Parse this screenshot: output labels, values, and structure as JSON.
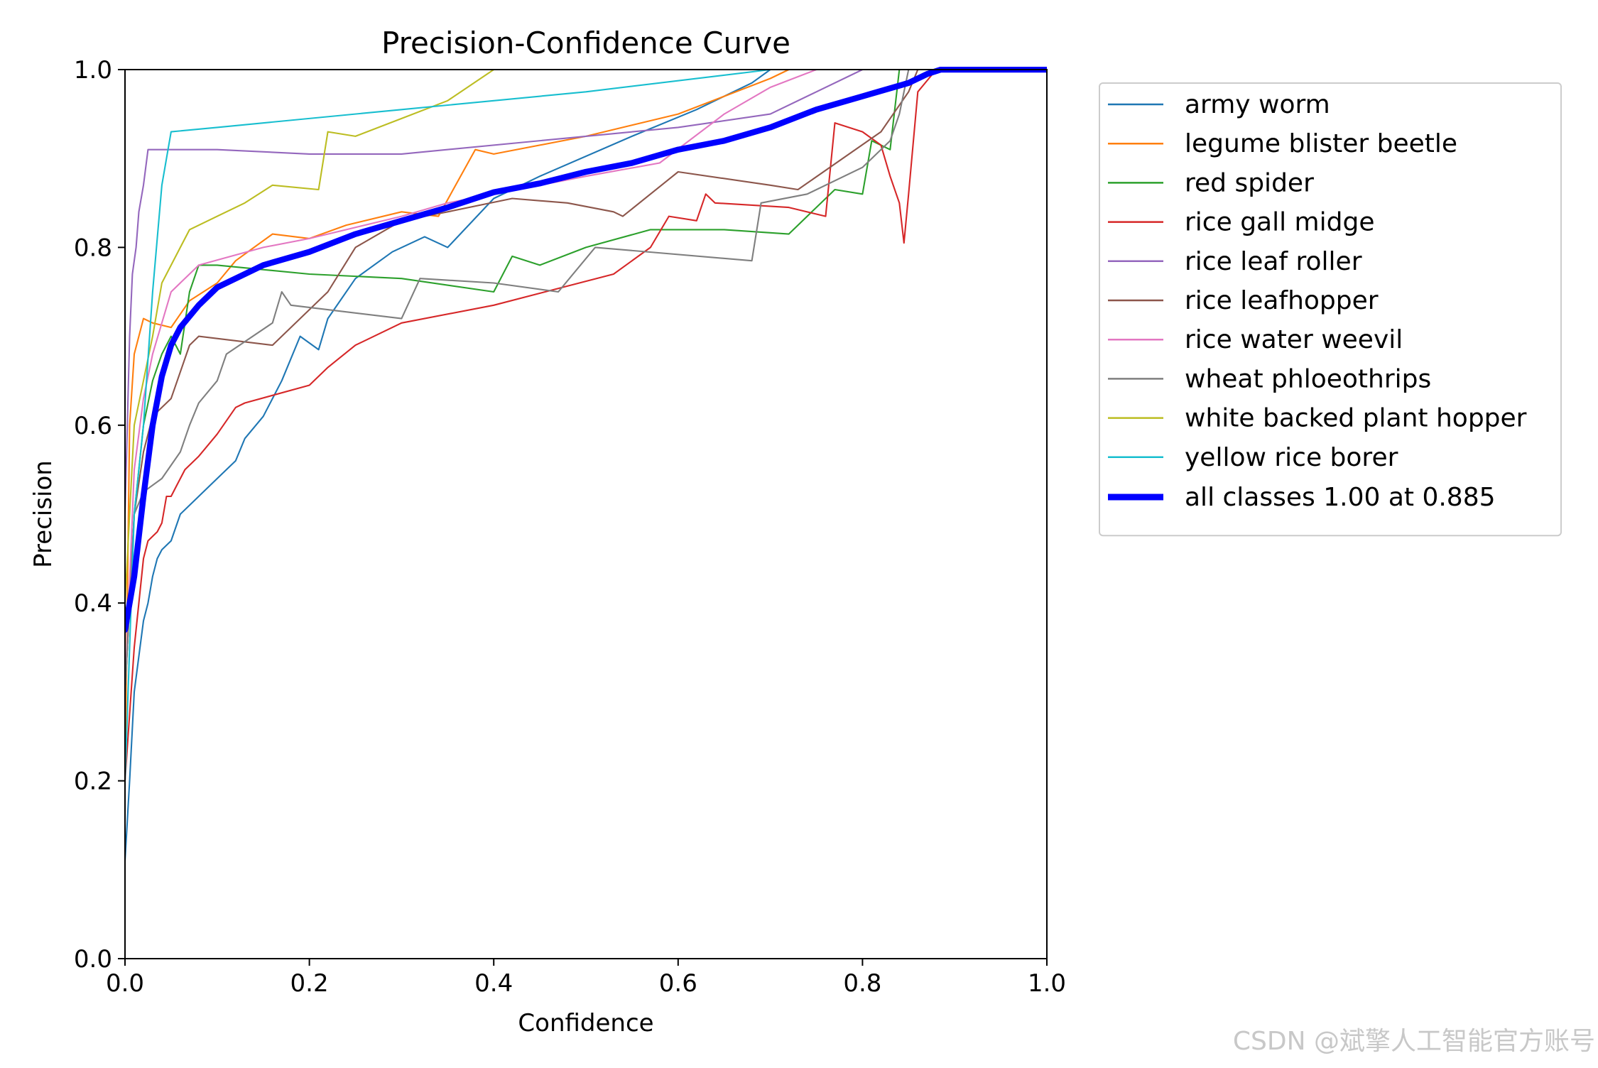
{
  "chart_data": {
    "type": "line",
    "title": "Precision-Confidence Curve",
    "xlabel": "Confidence",
    "ylabel": "Precision",
    "xlim": [
      0.0,
      1.0
    ],
    "ylim": [
      0.0,
      1.0
    ],
    "xticks": [
      "0.0",
      "0.2",
      "0.4",
      "0.6",
      "0.8",
      "1.0"
    ],
    "yticks": [
      "0.0",
      "0.2",
      "0.4",
      "0.6",
      "0.8",
      "1.0"
    ],
    "grid": false,
    "legend_position": "outside-right",
    "series": [
      {
        "name": "army worm",
        "color": "#1f77b4",
        "width": 1.5,
        "points": [
          [
            0.0,
            0.11
          ],
          [
            0.005,
            0.2
          ],
          [
            0.01,
            0.3
          ],
          [
            0.015,
            0.34
          ],
          [
            0.02,
            0.38
          ],
          [
            0.025,
            0.4
          ],
          [
            0.03,
            0.43
          ],
          [
            0.035,
            0.45
          ],
          [
            0.04,
            0.46
          ],
          [
            0.05,
            0.47
          ],
          [
            0.06,
            0.5
          ],
          [
            0.07,
            0.51
          ],
          [
            0.08,
            0.52
          ],
          [
            0.1,
            0.54
          ],
          [
            0.12,
            0.56
          ],
          [
            0.13,
            0.585
          ],
          [
            0.15,
            0.61
          ],
          [
            0.17,
            0.65
          ],
          [
            0.19,
            0.7
          ],
          [
            0.21,
            0.685
          ],
          [
            0.22,
            0.72
          ],
          [
            0.25,
            0.765
          ],
          [
            0.29,
            0.795
          ],
          [
            0.325,
            0.812
          ],
          [
            0.35,
            0.8
          ],
          [
            0.4,
            0.855
          ],
          [
            0.45,
            0.88
          ],
          [
            0.55,
            0.925
          ],
          [
            0.62,
            0.955
          ],
          [
            0.68,
            0.985
          ],
          [
            0.7,
            1.0
          ],
          [
            1.0,
            1.0
          ]
        ]
      },
      {
        "name": "legume blister beetle",
        "color": "#ff7f0e",
        "width": 1.5,
        "points": [
          [
            0.0,
            0.2
          ],
          [
            0.005,
            0.6
          ],
          [
            0.01,
            0.68
          ],
          [
            0.015,
            0.7
          ],
          [
            0.02,
            0.72
          ],
          [
            0.03,
            0.715
          ],
          [
            0.05,
            0.71
          ],
          [
            0.07,
            0.74
          ],
          [
            0.1,
            0.76
          ],
          [
            0.12,
            0.785
          ],
          [
            0.14,
            0.8
          ],
          [
            0.16,
            0.815
          ],
          [
            0.2,
            0.81
          ],
          [
            0.24,
            0.825
          ],
          [
            0.3,
            0.84
          ],
          [
            0.34,
            0.835
          ],
          [
            0.38,
            0.91
          ],
          [
            0.4,
            0.905
          ],
          [
            0.5,
            0.925
          ],
          [
            0.6,
            0.95
          ],
          [
            0.65,
            0.97
          ],
          [
            0.7,
            0.99
          ],
          [
            0.72,
            1.0
          ],
          [
            1.0,
            1.0
          ]
        ]
      },
      {
        "name": "red spider",
        "color": "#2ca02c",
        "width": 1.5,
        "points": [
          [
            0.0,
            0.3
          ],
          [
            0.01,
            0.5
          ],
          [
            0.02,
            0.6
          ],
          [
            0.03,
            0.65
          ],
          [
            0.04,
            0.68
          ],
          [
            0.05,
            0.7
          ],
          [
            0.06,
            0.68
          ],
          [
            0.07,
            0.75
          ],
          [
            0.08,
            0.78
          ],
          [
            0.1,
            0.78
          ],
          [
            0.2,
            0.77
          ],
          [
            0.3,
            0.765
          ],
          [
            0.4,
            0.75
          ],
          [
            0.42,
            0.79
          ],
          [
            0.45,
            0.78
          ],
          [
            0.5,
            0.8
          ],
          [
            0.57,
            0.82
          ],
          [
            0.65,
            0.82
          ],
          [
            0.72,
            0.815
          ],
          [
            0.77,
            0.865
          ],
          [
            0.8,
            0.86
          ],
          [
            0.81,
            0.92
          ],
          [
            0.83,
            0.91
          ],
          [
            0.84,
            1.0
          ],
          [
            1.0,
            1.0
          ]
        ]
      },
      {
        "name": "rice gall midge",
        "color": "#d62728",
        "width": 1.5,
        "points": [
          [
            0.0,
            0.2
          ],
          [
            0.01,
            0.35
          ],
          [
            0.02,
            0.45
          ],
          [
            0.025,
            0.47
          ],
          [
            0.03,
            0.475
          ],
          [
            0.035,
            0.48
          ],
          [
            0.04,
            0.49
          ],
          [
            0.045,
            0.52
          ],
          [
            0.05,
            0.52
          ],
          [
            0.055,
            0.53
          ],
          [
            0.065,
            0.55
          ],
          [
            0.08,
            0.565
          ],
          [
            0.1,
            0.59
          ],
          [
            0.12,
            0.62
          ],
          [
            0.13,
            0.625
          ],
          [
            0.2,
            0.645
          ],
          [
            0.22,
            0.665
          ],
          [
            0.25,
            0.69
          ],
          [
            0.3,
            0.715
          ],
          [
            0.4,
            0.735
          ],
          [
            0.53,
            0.77
          ],
          [
            0.57,
            0.8
          ],
          [
            0.59,
            0.835
          ],
          [
            0.62,
            0.83
          ],
          [
            0.63,
            0.86
          ],
          [
            0.64,
            0.85
          ],
          [
            0.72,
            0.845
          ],
          [
            0.76,
            0.835
          ],
          [
            0.77,
            0.94
          ],
          [
            0.8,
            0.93
          ],
          [
            0.82,
            0.915
          ],
          [
            0.83,
            0.88
          ],
          [
            0.84,
            0.85
          ],
          [
            0.845,
            0.805
          ],
          [
            0.85,
            0.86
          ],
          [
            0.86,
            0.975
          ],
          [
            0.88,
            1.0
          ],
          [
            1.0,
            1.0
          ]
        ]
      },
      {
        "name": "rice leaf roller",
        "color": "#9467bd",
        "width": 1.5,
        "points": [
          [
            0.0,
            0.5
          ],
          [
            0.005,
            0.7
          ],
          [
            0.008,
            0.77
          ],
          [
            0.012,
            0.8
          ],
          [
            0.015,
            0.84
          ],
          [
            0.02,
            0.87
          ],
          [
            0.025,
            0.91
          ],
          [
            0.1,
            0.91
          ],
          [
            0.2,
            0.905
          ],
          [
            0.3,
            0.905
          ],
          [
            0.5,
            0.925
          ],
          [
            0.6,
            0.935
          ],
          [
            0.7,
            0.95
          ],
          [
            0.75,
            0.975
          ],
          [
            0.8,
            1.0
          ],
          [
            1.0,
            1.0
          ]
        ]
      },
      {
        "name": "rice leafhopper",
        "color": "#8c564b",
        "width": 1.5,
        "points": [
          [
            0.0,
            0.3
          ],
          [
            0.01,
            0.5
          ],
          [
            0.02,
            0.57
          ],
          [
            0.03,
            0.61
          ],
          [
            0.05,
            0.63
          ],
          [
            0.06,
            0.66
          ],
          [
            0.07,
            0.69
          ],
          [
            0.08,
            0.7
          ],
          [
            0.16,
            0.69
          ],
          [
            0.22,
            0.75
          ],
          [
            0.25,
            0.8
          ],
          [
            0.3,
            0.83
          ],
          [
            0.35,
            0.84
          ],
          [
            0.42,
            0.855
          ],
          [
            0.48,
            0.85
          ],
          [
            0.53,
            0.84
          ],
          [
            0.54,
            0.835
          ],
          [
            0.6,
            0.885
          ],
          [
            0.7,
            0.87
          ],
          [
            0.73,
            0.865
          ],
          [
            0.82,
            0.93
          ],
          [
            0.85,
            0.975
          ],
          [
            0.86,
            1.0
          ],
          [
            1.0,
            1.0
          ]
        ]
      },
      {
        "name": "rice water weevil",
        "color": "#e377c2",
        "width": 1.5,
        "points": [
          [
            0.0,
            0.3
          ],
          [
            0.01,
            0.55
          ],
          [
            0.02,
            0.63
          ],
          [
            0.03,
            0.68
          ],
          [
            0.05,
            0.75
          ],
          [
            0.08,
            0.78
          ],
          [
            0.15,
            0.8
          ],
          [
            0.2,
            0.81
          ],
          [
            0.3,
            0.835
          ],
          [
            0.35,
            0.85
          ],
          [
            0.4,
            0.86
          ],
          [
            0.5,
            0.88
          ],
          [
            0.58,
            0.895
          ],
          [
            0.65,
            0.95
          ],
          [
            0.7,
            0.98
          ],
          [
            0.75,
            1.0
          ],
          [
            1.0,
            1.0
          ]
        ]
      },
      {
        "name": "wheat phloeothrips",
        "color": "#7f7f7f",
        "width": 1.5,
        "points": [
          [
            0.0,
            0.3
          ],
          [
            0.01,
            0.5
          ],
          [
            0.02,
            0.525
          ],
          [
            0.04,
            0.54
          ],
          [
            0.06,
            0.57
          ],
          [
            0.07,
            0.6
          ],
          [
            0.08,
            0.625
          ],
          [
            0.1,
            0.65
          ],
          [
            0.11,
            0.68
          ],
          [
            0.16,
            0.715
          ],
          [
            0.17,
            0.75
          ],
          [
            0.18,
            0.735
          ],
          [
            0.3,
            0.72
          ],
          [
            0.32,
            0.765
          ],
          [
            0.4,
            0.76
          ],
          [
            0.47,
            0.75
          ],
          [
            0.51,
            0.8
          ],
          [
            0.68,
            0.785
          ],
          [
            0.69,
            0.85
          ],
          [
            0.74,
            0.86
          ],
          [
            0.8,
            0.89
          ],
          [
            0.83,
            0.92
          ],
          [
            0.84,
            0.95
          ],
          [
            0.85,
            1.0
          ],
          [
            1.0,
            1.0
          ]
        ]
      },
      {
        "name": "white backed plant hopper",
        "color": "#bcbd22",
        "width": 1.5,
        "points": [
          [
            0.0,
            0.4
          ],
          [
            0.01,
            0.6
          ],
          [
            0.02,
            0.65
          ],
          [
            0.03,
            0.7
          ],
          [
            0.04,
            0.76
          ],
          [
            0.06,
            0.8
          ],
          [
            0.07,
            0.82
          ],
          [
            0.1,
            0.835
          ],
          [
            0.13,
            0.85
          ],
          [
            0.16,
            0.87
          ],
          [
            0.21,
            0.865
          ],
          [
            0.22,
            0.93
          ],
          [
            0.25,
            0.925
          ],
          [
            0.3,
            0.945
          ],
          [
            0.35,
            0.965
          ],
          [
            0.4,
            1.0
          ],
          [
            1.0,
            1.0
          ]
        ]
      },
      {
        "name": "yellow rice borer",
        "color": "#17becf",
        "width": 1.5,
        "points": [
          [
            0.0,
            0.2
          ],
          [
            0.01,
            0.5
          ],
          [
            0.02,
            0.6
          ],
          [
            0.03,
            0.75
          ],
          [
            0.04,
            0.87
          ],
          [
            0.05,
            0.93
          ],
          [
            0.1,
            0.935
          ],
          [
            0.3,
            0.955
          ],
          [
            0.5,
            0.975
          ],
          [
            0.7,
            1.0
          ],
          [
            1.0,
            1.0
          ]
        ]
      },
      {
        "name": "all classes 1.00 at 0.885",
        "color": "#0000ff",
        "width": 6,
        "points": [
          [
            0.0,
            0.37
          ],
          [
            0.01,
            0.43
          ],
          [
            0.02,
            0.52
          ],
          [
            0.03,
            0.6
          ],
          [
            0.04,
            0.655
          ],
          [
            0.05,
            0.69
          ],
          [
            0.06,
            0.71
          ],
          [
            0.08,
            0.735
          ],
          [
            0.1,
            0.755
          ],
          [
            0.15,
            0.78
          ],
          [
            0.2,
            0.795
          ],
          [
            0.25,
            0.815
          ],
          [
            0.3,
            0.83
          ],
          [
            0.35,
            0.845
          ],
          [
            0.4,
            0.862
          ],
          [
            0.45,
            0.872
          ],
          [
            0.5,
            0.885
          ],
          [
            0.55,
            0.895
          ],
          [
            0.6,
            0.91
          ],
          [
            0.65,
            0.92
          ],
          [
            0.7,
            0.935
          ],
          [
            0.75,
            0.955
          ],
          [
            0.8,
            0.97
          ],
          [
            0.85,
            0.985
          ],
          [
            0.87,
            0.995
          ],
          [
            0.885,
            1.0
          ],
          [
            1.0,
            1.0
          ]
        ]
      }
    ]
  },
  "watermark": "CSDN @斌擎人工智能官方账号"
}
